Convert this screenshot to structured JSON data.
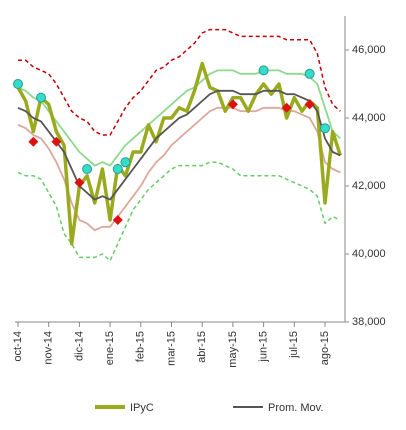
{
  "chart_data": {
    "type": "line",
    "categories": [
      "oct-14",
      null,
      null,
      null,
      "nov-14",
      null,
      null,
      null,
      "dic-14",
      null,
      null,
      null,
      "ene-15",
      null,
      null,
      null,
      "feb-15",
      null,
      null,
      null,
      "mar-15",
      null,
      null,
      null,
      "abr-15",
      null,
      null,
      null,
      "may-15",
      null,
      null,
      null,
      "jun-15",
      null,
      null,
      null,
      "jul-15",
      null,
      null,
      null,
      "ago-15",
      null,
      null
    ],
    "ylim": [
      38000,
      47000
    ],
    "yticks": [
      {
        "value": 38000,
        "label": "38,000"
      },
      {
        "value": 40000,
        "label": "40,000"
      },
      {
        "value": 42000,
        "label": "42,000"
      },
      {
        "value": 44000,
        "label": "44,000"
      },
      {
        "value": 46000,
        "label": "46,000"
      }
    ],
    "series": [
      {
        "color": "#c00000",
        "style": "dashed",
        "values": [
          45700,
          45700,
          45500,
          45400,
          45300,
          45000,
          44600,
          44200,
          44000,
          43900,
          43600,
          43500,
          43500,
          43900,
          44300,
          44600,
          44800,
          45100,
          45400,
          45500,
          45700,
          45800,
          46000,
          46200,
          46500,
          46600,
          46600,
          46600,
          46500,
          46400,
          46400,
          46400,
          46400,
          46400,
          46400,
          46300,
          46300,
          46300,
          46300,
          45900,
          44900,
          44400,
          44200
        ]
      },
      {
        "color": "#66cc66",
        "style": "dashed",
        "values": [
          42400,
          42300,
          42300,
          42200,
          41800,
          41400,
          40600,
          40300,
          39900,
          39900,
          39900,
          40000,
          39800,
          40300,
          40800,
          41300,
          41600,
          41900,
          42100,
          42300,
          42500,
          42600,
          42600,
          42600,
          42600,
          42700,
          42700,
          42600,
          42500,
          42300,
          42300,
          42300,
          42300,
          42300,
          42300,
          42200,
          42100,
          42000,
          41900,
          41700,
          40900,
          41100,
          41000
        ]
      },
      {
        "color": "#8fd88f",
        "style": "line",
        "values": [
          44900,
          44800,
          44600,
          44500,
          44200,
          43900,
          43600,
          43300,
          43000,
          42800,
          42600,
          42700,
          42600,
          42900,
          43200,
          43400,
          43600,
          43800,
          44000,
          44200,
          44400,
          44600,
          44800,
          44900,
          45100,
          45300,
          45400,
          45400,
          45400,
          45300,
          45300,
          45300,
          45400,
          45400,
          45400,
          45300,
          45300,
          45300,
          45200,
          45000,
          44300,
          43600,
          43400
        ]
      },
      {
        "color": "#dca89a",
        "style": "line",
        "values": [
          43800,
          43700,
          43500,
          43400,
          43100,
          42700,
          42200,
          41500,
          41000,
          40900,
          40700,
          40800,
          40800,
          41100,
          41400,
          41700,
          42000,
          42400,
          42700,
          42900,
          43200,
          43400,
          43600,
          43800,
          44000,
          44200,
          44300,
          44300,
          44300,
          44200,
          44200,
          44200,
          44300,
          44300,
          44300,
          44200,
          44200,
          44100,
          44000,
          43600,
          42700,
          42500,
          42400
        ]
      },
      {
        "name": "IPyC",
        "color": "#9aaa1e",
        "style": "thick",
        "values": [
          44900,
          44500,
          43600,
          44600,
          44400,
          43600,
          43200,
          40300,
          42000,
          42300,
          41500,
          42500,
          41000,
          42600,
          42300,
          43000,
          43000,
          43800,
          43300,
          44000,
          44000,
          44300,
          44200,
          44800,
          45600,
          44900,
          44800,
          44200,
          44600,
          44600,
          44200,
          44700,
          45000,
          44700,
          45000,
          44000,
          44600,
          44200,
          44500,
          44300,
          41500,
          43600,
          42900
        ]
      },
      {
        "name": "Prom. Mov.",
        "color": "#555555",
        "style": "line",
        "values": [
          44300,
          44200,
          44000,
          43900,
          43600,
          43300,
          43000,
          42500,
          42000,
          41800,
          41600,
          41700,
          41600,
          41900,
          42200,
          42500,
          42800,
          43100,
          43400,
          43600,
          43800,
          44000,
          44100,
          44300,
          44500,
          44700,
          44800,
          44800,
          44800,
          44700,
          44700,
          44700,
          44800,
          44800,
          44800,
          44700,
          44700,
          44600,
          44500,
          44200,
          43400,
          43000,
          42900
        ]
      },
      {
        "color": "#33ddcc",
        "style": "circle",
        "values": [
          45000,
          null,
          null,
          44600,
          null,
          null,
          null,
          null,
          null,
          42500,
          null,
          null,
          null,
          42500,
          42700,
          null,
          null,
          null,
          null,
          null,
          null,
          null,
          null,
          null,
          null,
          null,
          null,
          null,
          null,
          null,
          null,
          null,
          45400,
          null,
          null,
          null,
          null,
          null,
          45300,
          null,
          43700,
          null,
          null
        ]
      },
      {
        "color": "#dd1111",
        "style": "diamond",
        "values": [
          null,
          null,
          43300,
          null,
          null,
          43300,
          null,
          null,
          42100,
          null,
          null,
          null,
          null,
          41000,
          null,
          null,
          null,
          null,
          null,
          null,
          null,
          null,
          null,
          null,
          null,
          null,
          null,
          null,
          44400,
          null,
          null,
          null,
          null,
          null,
          null,
          44300,
          null,
          null,
          44400,
          null,
          null,
          null,
          null
        ]
      }
    ]
  }
}
